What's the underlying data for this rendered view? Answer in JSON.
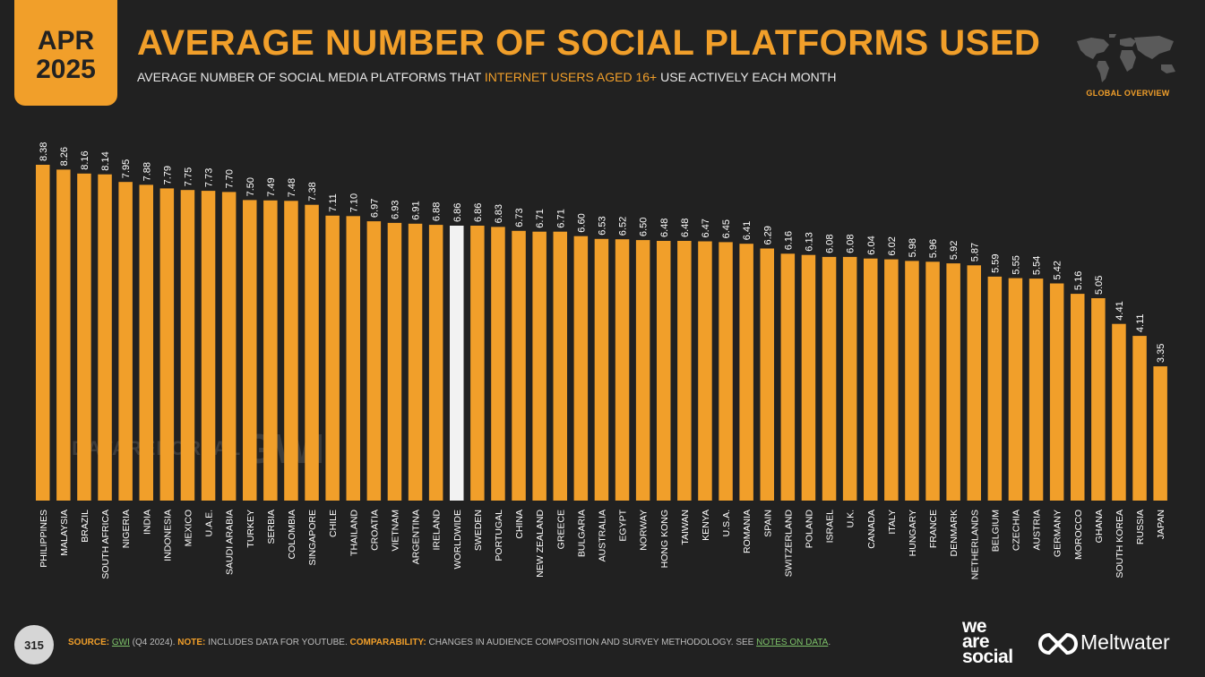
{
  "header": {
    "month": "APR",
    "year": "2025",
    "title": "AVERAGE NUMBER OF SOCIAL PLATFORMS USED",
    "subtitle_pre": "AVERAGE NUMBER OF SOCIAL MEDIA PLATFORMS THAT ",
    "subtitle_highlight": "INTERNET USERS AGED 16+",
    "subtitle_post": " USE ACTIVELY EACH MONTH",
    "global_label": "GLOBAL OVERVIEW"
  },
  "watermarks": {
    "datareportal": "DATAREPORTAL",
    "gwi": "GWI."
  },
  "colors": {
    "accent": "#f19f2a",
    "highlight_bar": "#f2f2f2",
    "background": "#212121"
  },
  "chart_data": {
    "type": "bar",
    "title": "AVERAGE NUMBER OF SOCIAL PLATFORMS USED",
    "xlabel": "",
    "ylabel": "",
    "ylim": [
      0,
      8.38
    ],
    "grid": false,
    "highlight": "WORLDWIDE",
    "categories": [
      "PHILIPPINES",
      "MALAYSIA",
      "BRAZIL",
      "SOUTH AFRICA",
      "NIGERIA",
      "INDIA",
      "INDONESIA",
      "MEXICO",
      "U.A.E.",
      "SAUDI ARABIA",
      "TURKEY",
      "SERBIA",
      "COLOMBIA",
      "SINGAPORE",
      "CHILE",
      "THAILAND",
      "CROATIA",
      "VIETNAM",
      "ARGENTINA",
      "IRELAND",
      "WORLDWIDE",
      "SWEDEN",
      "PORTUGAL",
      "CHINA",
      "NEW ZEALAND",
      "GREECE",
      "BULGARIA",
      "AUSTRALIA",
      "EGYPT",
      "NORWAY",
      "HONG KONG",
      "TAIWAN",
      "KENYA",
      "U.S.A.",
      "ROMANIA",
      "SPAIN",
      "SWITZERLAND",
      "POLAND",
      "ISRAEL",
      "U.K.",
      "CANADA",
      "ITALY",
      "HUNGARY",
      "FRANCE",
      "DENMARK",
      "NETHERLANDS",
      "BELGIUM",
      "CZECHIA",
      "AUSTRIA",
      "GERMANY",
      "MOROCCO",
      "GHANA",
      "SOUTH KOREA",
      "RUSSIA",
      "JAPAN"
    ],
    "values": [
      8.38,
      8.26,
      8.16,
      8.14,
      7.95,
      7.88,
      7.79,
      7.75,
      7.73,
      7.7,
      7.5,
      7.49,
      7.48,
      7.38,
      7.11,
      7.1,
      6.97,
      6.93,
      6.91,
      6.88,
      6.86,
      6.86,
      6.83,
      6.73,
      6.71,
      6.71,
      6.6,
      6.53,
      6.52,
      6.5,
      6.48,
      6.48,
      6.47,
      6.45,
      6.41,
      6.29,
      6.16,
      6.13,
      6.08,
      6.08,
      6.04,
      6.02,
      5.98,
      5.96,
      5.92,
      5.87,
      5.59,
      5.55,
      5.54,
      5.42,
      5.16,
      5.05,
      4.41,
      4.11,
      3.35
    ]
  },
  "footer": {
    "page_number": "315",
    "source_label": "SOURCE:",
    "source_link": "GWI",
    "source_text": " (Q4 2024). ",
    "note_label": "NOTE:",
    "note_text": " INCLUDES DATA FOR YOUTUBE. ",
    "comparability_label": "COMPARABILITY:",
    "comparability_text": " CHANGES IN AUDIENCE COMPOSITION AND SURVEY METHODOLOGY. SEE ",
    "notes_link": "NOTES ON DATA",
    "end_punct": ".",
    "brand1_line1": "we",
    "brand1_line2": "are",
    "brand1_line3": "social",
    "brand2": "Meltwater"
  }
}
